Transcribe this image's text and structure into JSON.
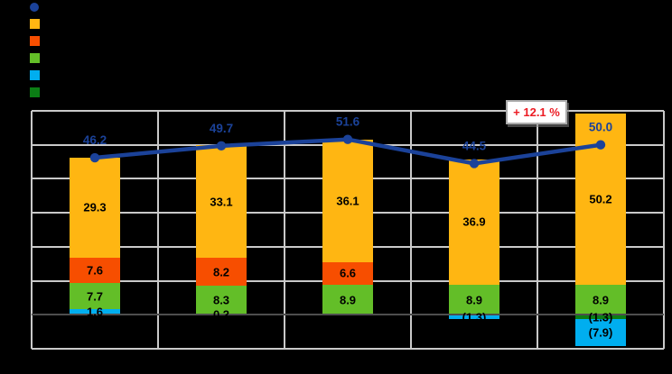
{
  "page": {
    "background": "#000000"
  },
  "legend": {
    "items": [
      {
        "key": "line",
        "shape": "circle",
        "color": "#1B4299",
        "label": ""
      },
      {
        "key": "orange",
        "shape": "square",
        "color": "#FFB612",
        "label": ""
      },
      {
        "key": "red",
        "shape": "square",
        "color": "#F74E00",
        "label": ""
      },
      {
        "key": "green",
        "shape": "square",
        "color": "#63BE28",
        "label": ""
      },
      {
        "key": "cyan",
        "shape": "square",
        "color": "#00AEEF",
        "label": ""
      },
      {
        "key": "dark-green",
        "shape": "square",
        "color": "#0B7E15",
        "label": ""
      }
    ]
  },
  "annotation": {
    "text": "+ 12.1 %",
    "color": "#EC1C24"
  },
  "chart_data": {
    "type": "bar",
    "subtype": "stacked-columns-with-total-line",
    "title": "",
    "xlabel": "",
    "ylabel": "",
    "categories": [
      "",
      "",
      "",
      "",
      ""
    ],
    "ylim": [
      -10,
      60
    ],
    "grid_step": 10,
    "grid_on": true,
    "grid_color": "#C9C9C9",
    "zero_line_color": "#4E4E4E",
    "legend_position": "top-left",
    "bar_label_color": "#000000",
    "series": [
      {
        "key": "dark-green",
        "color": "#0B7E15",
        "values": [
          null,
          null,
          null,
          null,
          -1.3
        ],
        "labels": [
          null,
          null,
          null,
          null,
          "(1.3)"
        ]
      },
      {
        "key": "cyan",
        "color": "#00AEEF",
        "values": [
          1.6,
          0.2,
          null,
          -1.3,
          -7.9
        ],
        "labels": [
          "1.6",
          "0.2",
          null,
          "(1.3)",
          "(7.9)"
        ]
      },
      {
        "key": "green",
        "color": "#63BE28",
        "values": [
          7.7,
          8.3,
          8.9,
          8.9,
          8.9
        ],
        "labels": [
          "7.7",
          "8.3",
          "8.9",
          "8.9",
          "8.9"
        ]
      },
      {
        "key": "red",
        "color": "#F74E00",
        "values": [
          7.6,
          8.2,
          6.6,
          null,
          null
        ],
        "labels": [
          "7.6",
          "8.2",
          "6.6",
          null,
          null
        ]
      },
      {
        "key": "orange",
        "color": "#FFB612",
        "values": [
          29.3,
          33.1,
          36.1,
          36.9,
          50.2
        ],
        "labels": [
          "29.3",
          "33.1",
          "36.1",
          "36.9",
          "50.2"
        ]
      }
    ],
    "line_series": {
      "key": "total-line",
      "color": "#1B4299",
      "values": [
        46.2,
        49.7,
        51.6,
        44.5,
        50.0
      ],
      "labels": [
        "46.2",
        "49.7",
        "51.6",
        "44.5",
        "50.0"
      ]
    }
  }
}
